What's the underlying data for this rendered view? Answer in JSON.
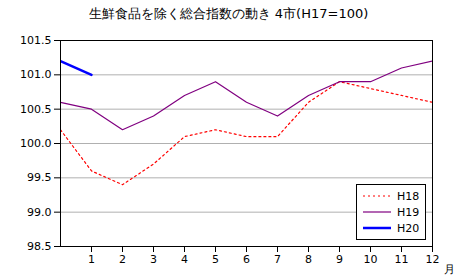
{
  "chart_data": {
    "type": "line",
    "title": "生鮮食品を除く総合指数の動き 4市(H17=100)",
    "x_label": "月",
    "x": [
      0,
      1,
      2,
      3,
      4,
      5,
      6,
      7,
      8,
      9,
      10,
      11,
      12
    ],
    "xlim": [
      0,
      12
    ],
    "xticks": [
      1,
      2,
      3,
      4,
      5,
      6,
      7,
      8,
      9,
      10,
      11,
      12
    ],
    "ylim": [
      98.5,
      101.5
    ],
    "yticks": [
      98.5,
      {
        "value": 99,
        "label": "99.0"
      },
      99.5,
      {
        "value": 100,
        "label": "100.0"
      },
      100.5,
      {
        "value": 101,
        "label": "101.0"
      },
      101.5
    ],
    "grid": true,
    "legend": "lower right",
    "series": [
      {
        "name": "H18",
        "color": "#ff0000",
        "line_style": "dotted",
        "values": [
          100.2,
          99.6,
          99.4,
          99.7,
          100.1,
          100.2,
          100.1,
          100.1,
          100.6,
          100.9,
          100.8,
          100.7,
          100.6
        ]
      },
      {
        "name": "H19",
        "color": "#800080",
        "line_style": "solid",
        "values": [
          100.6,
          100.5,
          100.2,
          100.4,
          100.7,
          100.9,
          100.6,
          100.4,
          100.7,
          100.9,
          100.9,
          101.1,
          101.2
        ]
      },
      {
        "name": "H20",
        "color": "#0000ff",
        "line_style": "solid",
        "values": [
          101.2,
          101.0,
          null,
          null,
          null,
          null,
          null,
          null,
          null,
          null,
          null,
          null,
          null
        ]
      }
    ]
  }
}
